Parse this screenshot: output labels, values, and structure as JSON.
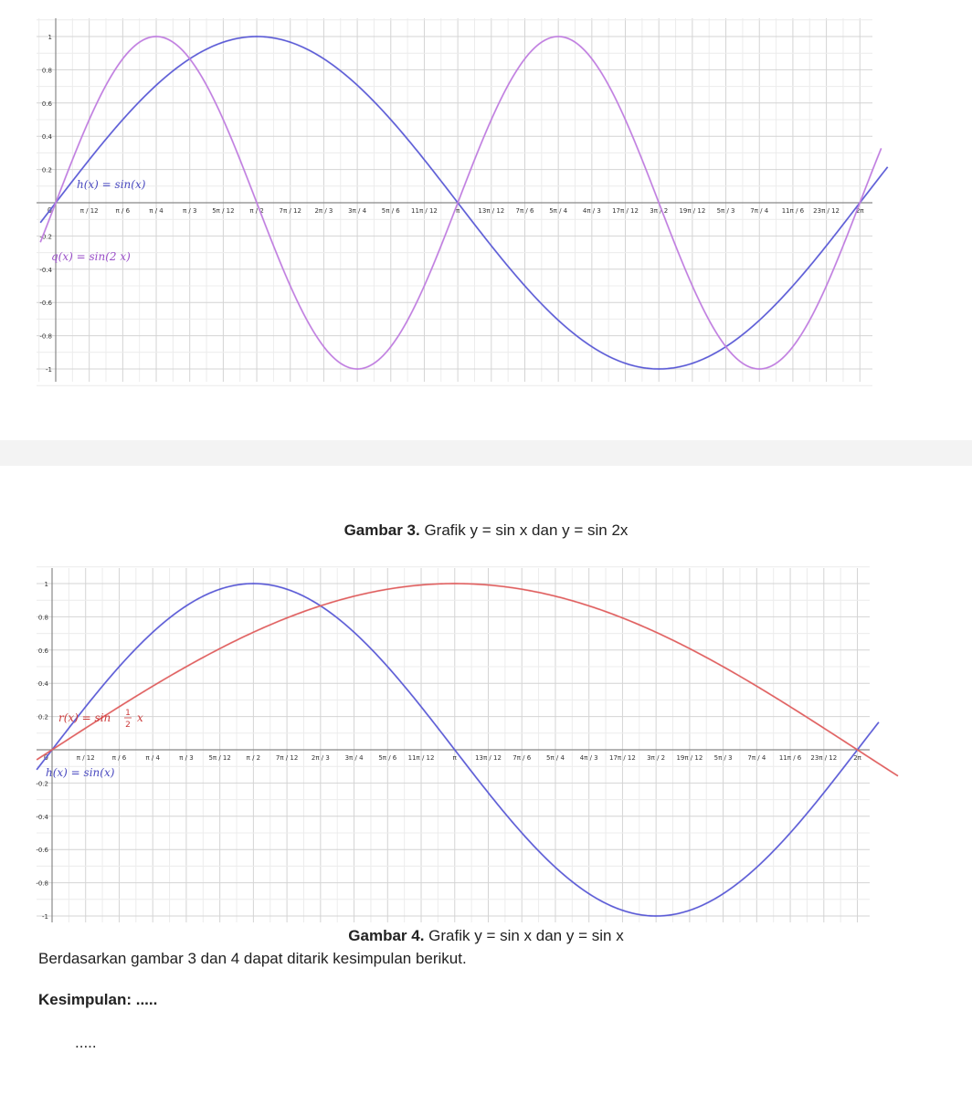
{
  "chart_data": [
    {
      "type": "line",
      "title": "",
      "xlim": [
        -0.2,
        6.6
      ],
      "ylim": [
        -1.08,
        1.08
      ],
      "x_ticks": [
        "π / 12",
        "π / 6",
        "π / 4",
        "π / 3",
        "5π / 12",
        "π / 2",
        "7π / 12",
        "2π / 3",
        "3π / 4",
        "5π / 6",
        "11π / 12",
        "π",
        "13π / 12",
        "7π / 6",
        "5π / 4",
        "4π / 3",
        "17π / 12",
        "3π / 2",
        "19π / 12",
        "5π / 3",
        "7π / 4",
        "11π / 6",
        "23π / 12",
        "2π"
      ],
      "y_ticks": [
        "1",
        "0.8",
        "0.6",
        "0.4",
        "0.2",
        "-0.2",
        "-0.4",
        "-0.6",
        "-0.8",
        "-1"
      ],
      "origin_label": "0",
      "grid": true,
      "series": [
        {
          "name": "h(x) = sin(x)",
          "function": "sin(x)",
          "color": "#5b5bd6",
          "x_range": [
            -0.12,
            6.5
          ]
        },
        {
          "name": "q(x) = sin(2 x)",
          "function": "sin(2x)",
          "color": "#c07ee0",
          "x_range": [
            -0.12,
            6.45
          ]
        }
      ]
    },
    {
      "type": "line",
      "title": "",
      "xlim": [
        -0.2,
        6.6
      ],
      "ylim": [
        -1.08,
        1.08
      ],
      "x_ticks": [
        "π / 12",
        "π / 6",
        "π / 4",
        "π / 3",
        "5π / 12",
        "π / 2",
        "7π / 12",
        "2π / 3",
        "3π / 4",
        "5π / 6",
        "11π / 12",
        "π",
        "13π / 12",
        "7π / 6",
        "5π / 4",
        "4π / 3",
        "17π / 12",
        "3π / 2",
        "19π / 12",
        "5π / 3",
        "7π / 4",
        "11π / 6",
        "23π / 12",
        "2π"
      ],
      "y_ticks": [
        "1",
        "0.8",
        "0.6",
        "0.4",
        "0.2",
        "-0.2",
        "-0.4",
        "-0.6",
        "-0.8",
        "-1"
      ],
      "origin_label": "0",
      "grid": true,
      "series": [
        {
          "name": "h(x) = sin(x)",
          "function": "sin(x)",
          "color": "#5b5bd6",
          "x_range": [
            -0.12,
            6.45
          ]
        },
        {
          "name": "r(x) = sin(1/2 x)",
          "function": "sin(x/2)",
          "color": "#e06060",
          "x_range": [
            -0.12,
            6.6
          ]
        }
      ]
    }
  ],
  "labels": {
    "chart1_h": "h(x) = sin(x)",
    "chart1_q": "q(x) = sin(2 x)",
    "chart2_r_pre": "r(x) = sin",
    "chart2_r_frac_num": "1",
    "chart2_r_frac_den": "2",
    "chart2_r_post": "x",
    "chart2_h": "h(x) = sin(x)"
  },
  "captions": {
    "fig3_bold": "Gambar 3.",
    "fig3_text": " Grafik y = sin x dan y = sin 2x",
    "fig4_bold": "Gambar 4.",
    "fig4_text": " Grafik y = sin x dan y = sin x"
  },
  "text": {
    "paragraph": "Berdasarkan gambar 3 dan 4 dapat ditarik kesimpulan berikut.",
    "conclusion_label": "Kesimpulan: .....",
    "dots": "....."
  }
}
